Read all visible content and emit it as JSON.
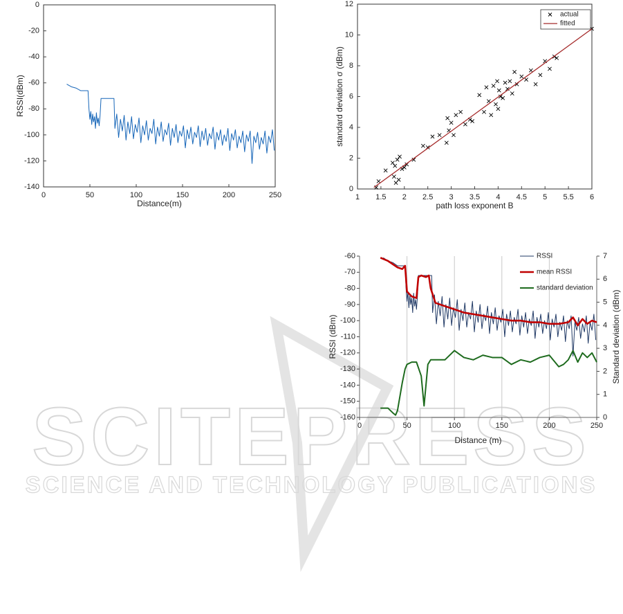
{
  "watermark": {
    "title": "SCITEPRESS",
    "subtitle": "SCIENCE AND TECHNOLOGY PUBLICATIONS"
  },
  "chart_data": [
    {
      "type": "line",
      "xlabel": "Distance(m)",
      "ylabel": "RSSI(dBm)",
      "xlim": [
        0,
        250
      ],
      "xticks": [
        0,
        50,
        100,
        150,
        200,
        250
      ],
      "ylim": [
        -140,
        0
      ],
      "yticks": [
        -140,
        -120,
        -100,
        -80,
        -60,
        -40,
        -20,
        0
      ],
      "series": [
        {
          "name": null,
          "color": "#1565b8",
          "x": [
            25,
            30,
            35,
            40,
            45,
            48,
            49,
            50,
            51,
            52,
            53,
            54,
            55,
            56,
            57,
            58,
            59,
            60,
            61,
            62,
            70,
            76,
            77,
            79,
            81,
            83,
            85,
            87,
            89,
            91,
            93,
            95,
            97,
            99,
            101,
            103,
            105,
            107,
            109,
            111,
            113,
            115,
            117,
            119,
            121,
            123,
            125,
            127,
            129,
            131,
            133,
            135,
            137,
            139,
            141,
            143,
            145,
            147,
            149,
            151,
            153,
            155,
            157,
            159,
            161,
            163,
            165,
            167,
            169,
            171,
            173,
            175,
            177,
            179,
            181,
            183,
            185,
            187,
            189,
            191,
            193,
            195,
            197,
            199,
            201,
            203,
            205,
            207,
            209,
            211,
            213,
            215,
            217,
            219,
            221,
            223,
            225,
            227,
            229,
            231,
            233,
            235,
            237,
            239,
            241,
            243,
            245,
            247,
            249
          ],
          "values": [
            -61,
            -63,
            -64,
            -66,
            -66,
            -66,
            -80,
            -88,
            -82,
            -92,
            -84,
            -90,
            -86,
            -95,
            -83,
            -91,
            -87,
            -93,
            -85,
            -72,
            -72,
            -72,
            -95,
            -84,
            -102,
            -88,
            -97,
            -85,
            -104,
            -90,
            -99,
            -86,
            -103,
            -92,
            -98,
            -87,
            -106,
            -93,
            -100,
            -89,
            -104,
            -95,
            -99,
            -88,
            -107,
            -94,
            -101,
            -90,
            -105,
            -96,
            -100,
            -91,
            -108,
            -95,
            -102,
            -92,
            -106,
            -97,
            -101,
            -93,
            -110,
            -96,
            -103,
            -94,
            -107,
            -98,
            -102,
            -93,
            -109,
            -97,
            -104,
            -95,
            -108,
            -99,
            -103,
            -94,
            -111,
            -98,
            -104,
            -96,
            -108,
            -100,
            -105,
            -95,
            -112,
            -99,
            -104,
            -96,
            -110,
            -101,
            -106,
            -97,
            -113,
            -100,
            -105,
            -97,
            -122,
            -101,
            -106,
            -98,
            -111,
            -102,
            -107,
            -97,
            -114,
            -101,
            -106,
            -96,
            -112
          ]
        }
      ]
    },
    {
      "type": "scatter",
      "xlabel": "path loss exponent B",
      "ylabel": "standard deviation σ (dBm)",
      "xlim": [
        1,
        6
      ],
      "xticks": [
        1,
        1.5,
        2,
        2.5,
        3,
        3.5,
        4,
        4.5,
        5,
        5.5,
        6
      ],
      "ylim": [
        0,
        12
      ],
      "yticks": [
        0,
        2,
        4,
        6,
        8,
        10,
        12
      ],
      "legend": "upper right",
      "series": [
        {
          "name": "actual",
          "color": "#000000",
          "marker": "x",
          "x": [
            1.4,
            1.45,
            1.6,
            1.75,
            1.78,
            1.8,
            1.82,
            1.85,
            1.88,
            1.9,
            1.95,
            2.0,
            2.05,
            2.2,
            2.4,
            2.5,
            2.6,
            2.75,
            2.9,
            2.92,
            2.95,
            3.0,
            3.05,
            3.1,
            3.2,
            3.3,
            3.4,
            3.45,
            3.6,
            3.7,
            3.75,
            3.8,
            3.85,
            3.9,
            3.95,
            3.98,
            4.0,
            4.02,
            4.05,
            4.1,
            4.15,
            4.2,
            4.25,
            4.3,
            4.35,
            4.4,
            4.5,
            4.6,
            4.7,
            4.8,
            4.9,
            5.0,
            5.1,
            5.2,
            5.25,
            6.0
          ],
          "values": [
            0.1,
            0.5,
            1.2,
            1.7,
            0.8,
            1.5,
            0.4,
            1.9,
            0.6,
            2.1,
            1.3,
            1.4,
            1.6,
            1.9,
            2.8,
            2.7,
            3.4,
            3.5,
            3.0,
            4.6,
            3.8,
            4.3,
            3.5,
            4.8,
            5.0,
            4.2,
            4.5,
            4.4,
            6.1,
            5.0,
            6.6,
            5.7,
            4.8,
            6.7,
            5.5,
            7.0,
            5.2,
            6.4,
            6.0,
            5.9,
            6.9,
            6.5,
            7.0,
            6.2,
            7.6,
            6.8,
            7.3,
            7.1,
            7.7,
            6.8,
            7.4,
            8.3,
            7.8,
            8.6,
            8.5,
            10.4
          ]
        },
        {
          "name": "fitted",
          "color": "#a52a2a",
          "x": [
            1.35,
            6
          ],
          "values": [
            0.1,
            10.4
          ]
        }
      ]
    },
    {
      "type": "line",
      "xlabel": "Distance (m)",
      "ylabel": "RSSI (dBm)",
      "y2label": "Standard deviation (dBm)",
      "xlim": [
        0,
        250
      ],
      "xticks": [
        0,
        50,
        100,
        150,
        200,
        250
      ],
      "ylim": [
        -160,
        -60
      ],
      "yticks": [
        -160,
        -150,
        -140,
        -130,
        -120,
        -110,
        -100,
        -90,
        -80,
        -70,
        -60
      ],
      "y2lim": [
        0,
        7
      ],
      "y2ticks": [
        0,
        1,
        2,
        3,
        4,
        5,
        6,
        7
      ],
      "grid": "x",
      "legend": "upper right",
      "series": [
        {
          "name": "RSSI",
          "color": "#1f3864",
          "x": [
            25,
            30,
            35,
            40,
            45,
            48,
            49,
            50,
            51,
            52,
            53,
            54,
            55,
            56,
            57,
            58,
            59,
            60,
            61,
            62,
            70,
            76,
            77,
            79,
            81,
            83,
            85,
            87,
            89,
            91,
            93,
            95,
            97,
            99,
            101,
            103,
            105,
            107,
            109,
            111,
            113,
            115,
            117,
            119,
            121,
            123,
            125,
            127,
            129,
            131,
            133,
            135,
            137,
            139,
            141,
            143,
            145,
            147,
            149,
            151,
            153,
            155,
            157,
            159,
            161,
            163,
            165,
            167,
            169,
            171,
            173,
            175,
            177,
            179,
            181,
            183,
            185,
            187,
            189,
            191,
            193,
            195,
            197,
            199,
            201,
            203,
            205,
            207,
            209,
            211,
            213,
            215,
            217,
            219,
            221,
            223,
            225,
            227,
            229,
            231,
            233,
            235,
            237,
            239,
            241,
            243,
            245,
            247,
            249
          ],
          "values": [
            -61,
            -63,
            -64,
            -66,
            -66,
            -66,
            -80,
            -88,
            -82,
            -92,
            -84,
            -90,
            -86,
            -95,
            -83,
            -91,
            -87,
            -93,
            -85,
            -72,
            -72,
            -72,
            -95,
            -84,
            -102,
            -88,
            -97,
            -85,
            -104,
            -90,
            -99,
            -86,
            -103,
            -92,
            -98,
            -87,
            -106,
            -93,
            -100,
            -89,
            -104,
            -95,
            -99,
            -88,
            -107,
            -94,
            -101,
            -90,
            -105,
            -96,
            -100,
            -91,
            -108,
            -95,
            -102,
            -92,
            -106,
            -97,
            -101,
            -93,
            -110,
            -96,
            -103,
            -94,
            -107,
            -98,
            -102,
            -93,
            -109,
            -97,
            -104,
            -95,
            -108,
            -99,
            -103,
            -94,
            -111,
            -98,
            -104,
            -96,
            -108,
            -100,
            -105,
            -95,
            -112,
            -99,
            -104,
            -96,
            -110,
            -101,
            -106,
            -97,
            -113,
            -100,
            -105,
            -97,
            -122,
            -101,
            -106,
            -98,
            -111,
            -102,
            -107,
            -97,
            -114,
            -101,
            -106,
            -96,
            -112
          ]
        },
        {
          "name": "mean RSSI",
          "color": "#c00000",
          "x": [
            22,
            30,
            35,
            40,
            45,
            48,
            50,
            55,
            60,
            62,
            65,
            70,
            73,
            75,
            80,
            90,
            100,
            110,
            120,
            130,
            140,
            150,
            160,
            170,
            180,
            190,
            200,
            210,
            220,
            225,
            230,
            235,
            240,
            245,
            250
          ],
          "values": [
            -61,
            -63,
            -65,
            -67,
            -68,
            -66,
            -82,
            -85,
            -86,
            -73,
            -72,
            -73,
            -72,
            -80,
            -89,
            -91,
            -93,
            -95,
            -96,
            -97,
            -98,
            -99,
            -100,
            -100,
            -101,
            -101,
            -102,
            -102,
            -101,
            -98,
            -103,
            -99,
            -102,
            -100,
            -101
          ]
        },
        {
          "name": "standard deviation",
          "color": "#1e6b1e",
          "axis": "y2",
          "x": [
            22,
            30,
            35,
            38,
            40,
            45,
            48,
            50,
            55,
            60,
            65,
            68,
            70,
            72,
            75,
            80,
            90,
            100,
            110,
            120,
            130,
            140,
            150,
            160,
            170,
            180,
            190,
            200,
            210,
            215,
            220,
            225,
            230,
            235,
            240,
            245,
            250
          ],
          "values": [
            0.4,
            0.4,
            0.2,
            0.1,
            0.3,
            1.5,
            2.1,
            2.3,
            2.4,
            2.4,
            1.8,
            0.5,
            1.4,
            2.3,
            2.5,
            2.5,
            2.5,
            2.9,
            2.6,
            2.5,
            2.7,
            2.6,
            2.6,
            2.3,
            2.5,
            2.4,
            2.6,
            2.7,
            2.2,
            2.3,
            2.5,
            2.9,
            2.4,
            2.8,
            2.6,
            2.8,
            2.4
          ]
        }
      ]
    }
  ]
}
